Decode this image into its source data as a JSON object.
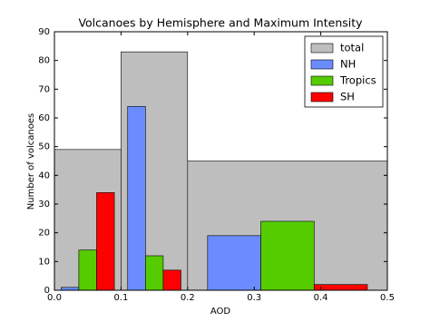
{
  "chart_data": {
    "type": "histogram",
    "title": "Volcanoes by Hemisphere and Maximum Intensity",
    "x_label": "AOD",
    "y_label": "Number of volcanoes",
    "bins": [
      0,
      0.1,
      0.2,
      0.5
    ],
    "series": [
      {
        "name": "total",
        "color": "#bebebe",
        "layout": "full",
        "values": [
          49,
          83,
          45
        ]
      },
      {
        "name": "NH",
        "color": "#6b8cff",
        "layout": "grouped",
        "values": [
          1,
          64,
          19
        ]
      },
      {
        "name": "Tropics",
        "color": "#55cc00",
        "layout": "grouped",
        "values": [
          14,
          12,
          24
        ]
      },
      {
        "name": "SH",
        "color": "#ff0000",
        "layout": "grouped",
        "values": [
          34,
          7,
          2
        ]
      }
    ],
    "xlim": [
      0,
      0.5
    ],
    "xticks": [
      {
        "value": 0,
        "label": "0.0"
      },
      0.1,
      0.2,
      0.3,
      0.4,
      0.5
    ],
    "ylim": [
      0,
      90
    ],
    "yticks": [
      0,
      10,
      20,
      30,
      40,
      50,
      60,
      70,
      80,
      90
    ],
    "legend": "upper right"
  }
}
